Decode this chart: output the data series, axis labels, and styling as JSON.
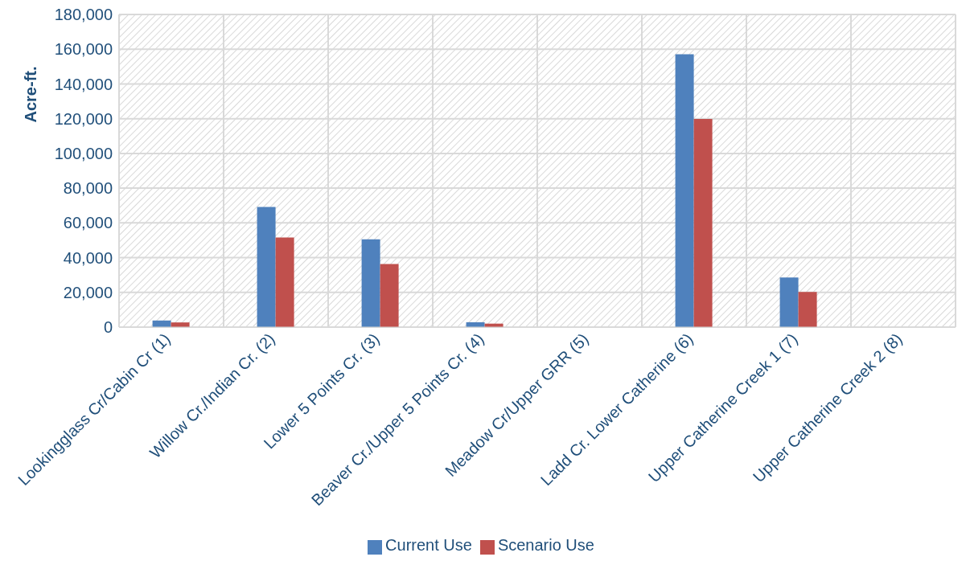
{
  "chart_data": {
    "type": "bar",
    "ylabel": "Acre-ft.",
    "categories": [
      "Lookingglass Cr/Cabin Cr (1)",
      "Willow Cr./Indian Cr. (2)",
      "Lower 5 Points Cr. (3)",
      "Beaver Cr./Upper 5 Points Cr. (4)",
      "Meadow Cr/Upper GRR (5)",
      "Ladd Cr. Lower Catherine (6)",
      "Upper Catherine Creek 1 (7)",
      "Upper Catherine Creek 2 (8)"
    ],
    "series": [
      {
        "name": "Current Use",
        "color": "#4f81bd",
        "values": [
          3800,
          69200,
          50500,
          2800,
          0,
          157100,
          28600,
          0
        ]
      },
      {
        "name": "Scenario Use",
        "color": "#c0504d",
        "values": [
          2700,
          51600,
          36300,
          2000,
          0,
          119800,
          20300,
          0
        ]
      }
    ],
    "ylim": [
      0,
      180000
    ],
    "yticks": [
      0,
      {
        "value": 20000,
        "label": "20,000"
      },
      {
        "value": 40000,
        "label": "40,000"
      },
      {
        "value": 60000,
        "label": "60,000"
      },
      {
        "value": 80000,
        "label": "80,000"
      },
      {
        "value": 100000,
        "label": "100,000"
      },
      {
        "value": 120000,
        "label": "120,000"
      },
      {
        "value": 140000,
        "label": "140,000"
      },
      {
        "value": 160000,
        "label": "160,000"
      },
      {
        "value": 180000,
        "label": "180,000"
      }
    ],
    "grid": true,
    "legend": "bottom"
  }
}
